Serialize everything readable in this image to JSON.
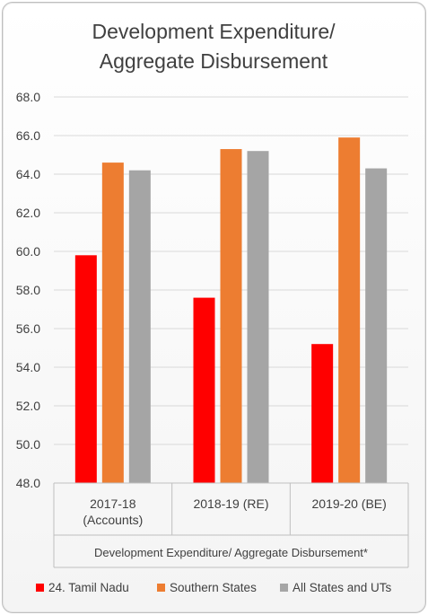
{
  "chart_data": {
    "type": "bar",
    "title_lines": [
      "Development Expenditure/",
      "Aggregate Disbursement"
    ],
    "categories": [
      [
        "2017-18",
        "(Accounts)"
      ],
      [
        "2018-19 (RE)"
      ],
      [
        "2019-20 (BE)"
      ]
    ],
    "xlabel": "Development Expenditure/ Aggregate Disbursement*",
    "ylabel": "",
    "ylim": [
      48.0,
      68.0
    ],
    "yticks": [
      "48.0",
      "50.0",
      "52.0",
      "54.0",
      "56.0",
      "58.0",
      "60.0",
      "62.0",
      "64.0",
      "66.0",
      "68.0"
    ],
    "grid": true,
    "legend_position": "bottom",
    "series": [
      {
        "name": "24. Tamil Nadu",
        "color": "#ff0000",
        "values": [
          59.8,
          57.6,
          55.2
        ]
      },
      {
        "name": "Southern States",
        "color": "#ed7d31",
        "values": [
          64.6,
          65.3,
          65.9
        ]
      },
      {
        "name": "All States and UTs",
        "color": "#a5a5a5",
        "values": [
          64.2,
          65.2,
          64.3
        ]
      }
    ]
  }
}
